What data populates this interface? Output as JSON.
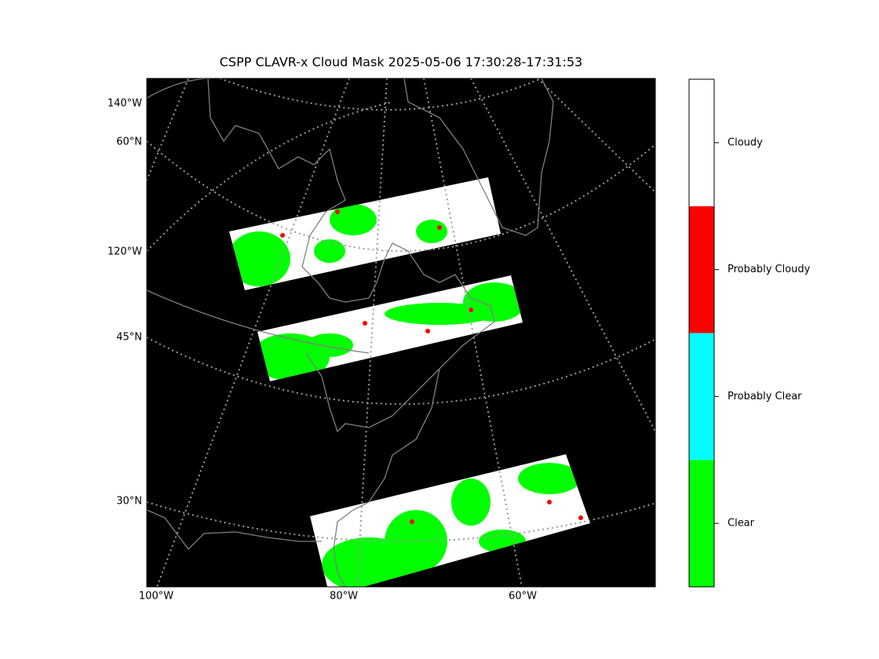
{
  "title": "CSPP CLAVR-x Cloud Mask 2025-05-06 17:30:28-17:31:53",
  "map": {
    "left_labels": [
      "140°W",
      "60°N",
      "120°W",
      "45°N",
      "30°N"
    ],
    "bottom_labels": [
      "100°W",
      "80°W",
      "60°W"
    ]
  },
  "colorbar": {
    "categories": [
      {
        "label": "Clear",
        "color": "#00ff00"
      },
      {
        "label": "Probably Clear",
        "color": "#00ffff"
      },
      {
        "label": "Probably Cloudy",
        "color": "#ff0000"
      },
      {
        "label": "Cloudy",
        "color": "#ffffff"
      }
    ]
  }
}
